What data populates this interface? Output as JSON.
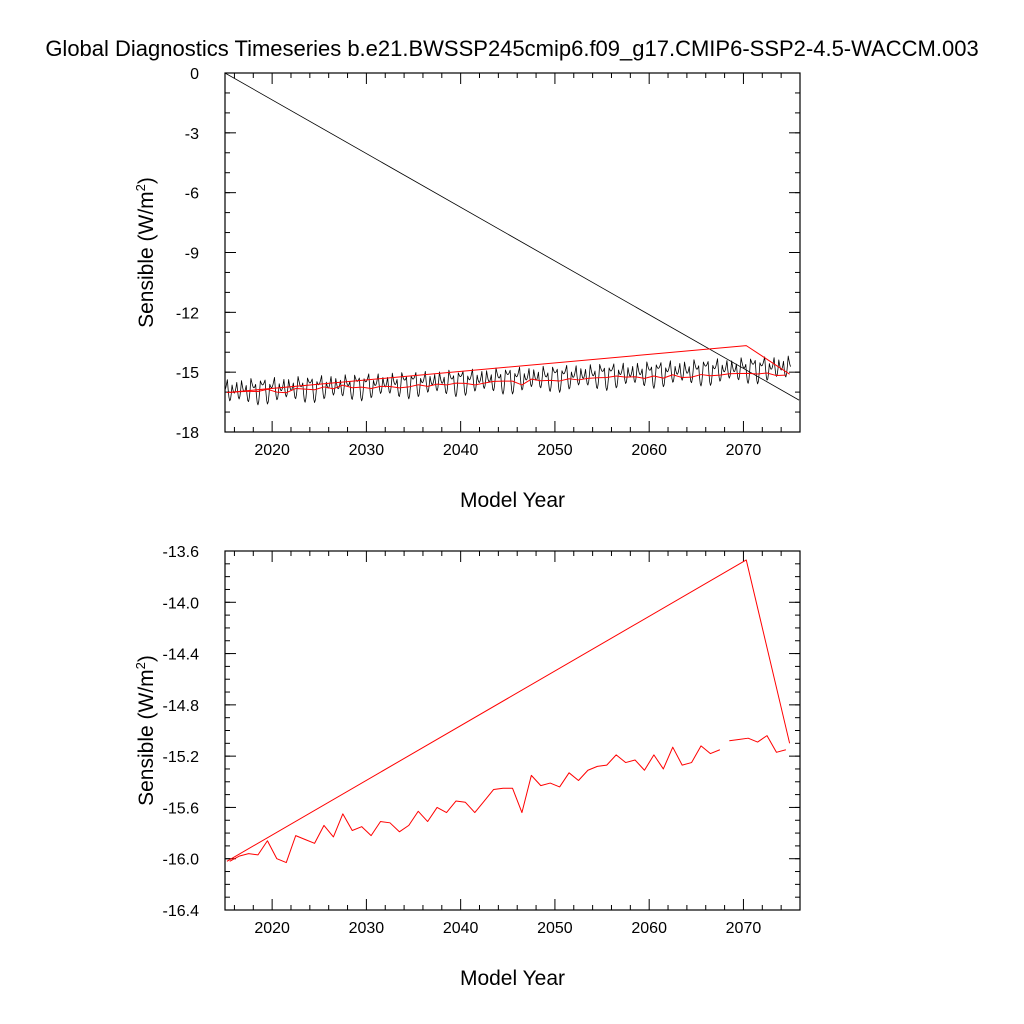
{
  "title": "Global Diagnostics Timeseries b.e21.BWSSP245cmip6.f09_g17.CMIP6-SSP2-4.5-WACCM.003",
  "colors": {
    "monthly": "#000000",
    "annual": "#ff0000",
    "axis": "#000000"
  },
  "chart_data": [
    {
      "type": "line",
      "xlabel": "Model Year",
      "ylabel": "Sensible (W/m",
      "ylabel_sup": "2",
      "ylabel_close": ")",
      "xlim": [
        2015,
        2076
      ],
      "ylim": [
        -18,
        0
      ],
      "xticks": [
        2020,
        2030,
        2040,
        2050,
        2060,
        2070
      ],
      "xtick_labels": [
        "2020",
        "2030",
        "2040",
        "2050",
        "2060",
        "2070"
      ],
      "yticks": [
        0,
        -3,
        -6,
        -9,
        -12,
        -15,
        -18
      ],
      "ytick_labels": [
        "0",
        "-3",
        "-6",
        "-9",
        "-12",
        "-15",
        "-18"
      ],
      "grid": false,
      "series": [
        {
          "style": "monthly",
          "description_color": "black",
          "seasonal_range": [
            -17.3,
            -15.2
          ],
          "trend_start": -16.1,
          "trend_end": -14.9,
          "x_range": [
            2015,
            2075
          ],
          "wrap_line": {
            "x": [
              2015.0,
              2075.9
            ],
            "y": [
              0,
              -16.4
            ]
          }
        },
        {
          "style": "annual",
          "x": [
            2015.5,
            2016.5,
            2017.5,
            2018.5,
            2019.5,
            2020.5,
            2021.5,
            2022.5,
            2023.5,
            2024.5,
            2025.5,
            2026.5,
            2027.5,
            2028.5,
            2029.5,
            2030.5,
            2031.5,
            2032.5,
            2033.5,
            2034.5,
            2035.5,
            2036.5,
            2037.5,
            2038.5,
            2039.5,
            2040.5,
            2041.5,
            2042.5,
            2043.5,
            2044.5,
            2045.5,
            2046.5,
            2047.5,
            2048.5,
            2049.5,
            2050.5,
            2051.5,
            2052.5,
            2053.5,
            2054.5,
            2055.5,
            2056.5,
            2057.5,
            2058.5,
            2059.5,
            2060.5,
            2061.5,
            2062.5,
            2063.5,
            2064.5,
            2065.5,
            2066.5,
            2067.5,
            2068.5,
            2069.5,
            2070.5,
            2071.5,
            2072.5,
            2073.5,
            2074.5
          ],
          "y": [
            -16.02,
            -15.98,
            -15.96,
            -15.97,
            -15.86,
            -16.0,
            -16.03,
            -15.82,
            -15.85,
            -15.88,
            -15.74,
            -15.83,
            -15.65,
            -15.78,
            -15.75,
            -15.82,
            -15.71,
            -15.72,
            -15.79,
            -15.74,
            -15.63,
            -15.71,
            -15.6,
            -15.64,
            -15.55,
            -15.56,
            -15.64,
            -15.55,
            -15.46,
            -15.45,
            -15.45,
            -15.64,
            -15.35,
            -15.43,
            -15.41,
            -15.44,
            -15.33,
            -15.39,
            -15.31,
            -15.28,
            -15.27,
            -15.19,
            -15.25,
            -15.23,
            -15.31,
            -15.19,
            -15.3,
            -15.13,
            -15.27,
            -15.25,
            -15.12,
            -15.18,
            -15.15,
            -15.08,
            -15.07,
            -15.06,
            -15.09,
            -15.04,
            -15.17,
            -15.15
          ],
          "wrap_line": {
            "x": [
              2015.2,
              2070.3,
              2074.9
            ],
            "y": [
              -16.02,
              -13.67,
              -15.1
            ]
          }
        }
      ]
    },
    {
      "type": "line",
      "xlabel": "Model Year",
      "ylabel": "Sensible (W/m",
      "ylabel_sup": "2",
      "ylabel_close": ")",
      "xlim": [
        2015,
        2076
      ],
      "ylim": [
        -16.4,
        -13.6
      ],
      "xticks": [
        2020,
        2030,
        2040,
        2050,
        2060,
        2070
      ],
      "xtick_labels": [
        "2020",
        "2030",
        "2040",
        "2050",
        "2060",
        "2070"
      ],
      "yticks": [
        -13.6,
        -14.0,
        -14.4,
        -14.8,
        -15.2,
        -15.6,
        -16.0,
        -16.4
      ],
      "ytick_labels": [
        "-13.6",
        "-14.0",
        "-14.4",
        "-14.8",
        "-15.2",
        "-15.6",
        "-16.0",
        "-16.4"
      ],
      "grid": false,
      "series": [
        {
          "style": "annual",
          "same_as_top_annual": true
        }
      ]
    }
  ]
}
